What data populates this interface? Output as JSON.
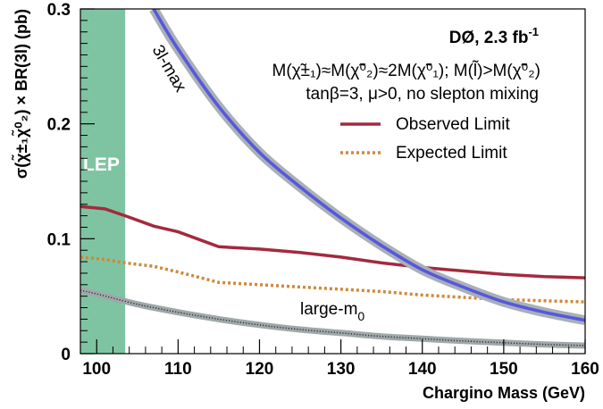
{
  "chart_data": {
    "type": "line",
    "xlabel": "Chargino Mass (GeV)",
    "ylabel": "σ(χ̃±₁χ̃⁰₂) × BR(3l) (pb)",
    "xlim": [
      98,
      160
    ],
    "ylim": [
      0,
      0.3
    ],
    "x_ticks": [
      100,
      110,
      120,
      130,
      140,
      150,
      160
    ],
    "y_ticks": [
      0,
      0.1,
      0.2,
      0.3
    ],
    "grid": false,
    "legend_position": "top-right",
    "annotations": {
      "experiment": "DØ, 2.3 fb",
      "experiment_sup": "-1",
      "mass_relation": "M(χ̃±₁)≈M(χ̃⁰₂)≈2M(χ̃⁰₁); M(l̃)>M(χ̃⁰₂)",
      "params": "tanβ=3, μ>0, no slepton mixing",
      "lep_label": "LEP",
      "curve_3lmax": "3l-max",
      "curve_largem0": "large-m",
      "curve_largem0_sub": "0"
    },
    "bands": [
      {
        "name": "LEP",
        "x_range": [
          98,
          103.5
        ],
        "color": "#7fc4a2"
      }
    ],
    "series": [
      {
        "name": "Observed Limit",
        "color": "#a32a3e",
        "style": "solid",
        "x": [
          98,
          101,
          103.5,
          107,
          110,
          115,
          120,
          125,
          130,
          135,
          140,
          145,
          150,
          155,
          160
        ],
        "y": [
          0.128,
          0.126,
          0.12,
          0.111,
          0.106,
          0.093,
          0.091,
          0.088,
          0.084,
          0.079,
          0.075,
          0.072,
          0.069,
          0.067,
          0.066
        ]
      },
      {
        "name": "Expected Limit",
        "color": "#d08838",
        "style": "dotted",
        "x": [
          98,
          101,
          103.5,
          107,
          110,
          115,
          120,
          125,
          130,
          135,
          140,
          145,
          150,
          155,
          160
        ],
        "y": [
          0.084,
          0.082,
          0.079,
          0.076,
          0.071,
          0.062,
          0.06,
          0.058,
          0.056,
          0.054,
          0.051,
          0.049,
          0.047,
          0.046,
          0.045
        ]
      },
      {
        "name": "3l-max",
        "color": "#5757dc",
        "band_color": "#a8b0b8",
        "style": "solid-band",
        "x": [
          107,
          110,
          115,
          120,
          125,
          130,
          135,
          140,
          145,
          150,
          155,
          160
        ],
        "y": [
          0.3,
          0.265,
          0.215,
          0.175,
          0.145,
          0.118,
          0.094,
          0.073,
          0.058,
          0.045,
          0.036,
          0.029
        ]
      },
      {
        "name": "large-m0",
        "color": "#333344",
        "band_color": "#a0a8a8",
        "style": "band",
        "x": [
          98,
          100,
          105,
          110,
          115,
          120,
          125,
          130,
          135,
          140,
          145,
          150,
          155,
          160
        ],
        "y": [
          0.055,
          0.052,
          0.043,
          0.036,
          0.03,
          0.025,
          0.021,
          0.018,
          0.015,
          0.013,
          0.011,
          0.0095,
          0.008,
          0.007
        ]
      }
    ]
  }
}
